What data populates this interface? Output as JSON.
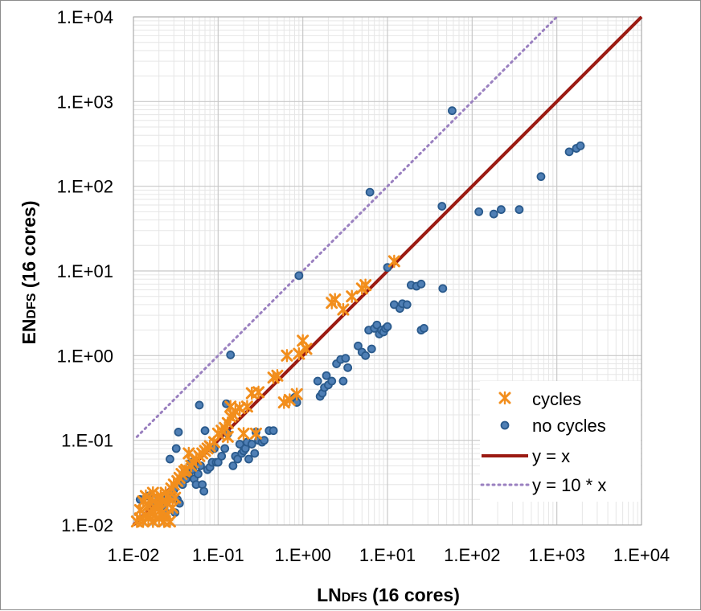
{
  "chart_data": {
    "type": "scatter",
    "xscale": "log",
    "yscale": "log",
    "xlim": [
      0.01,
      10000
    ],
    "ylim": [
      0.01,
      10000
    ],
    "xlabel_main": "LN",
    "xlabel_sub": "DFS",
    "xlabel_rest": " (16 cores)",
    "ylabel_main": "EN",
    "ylabel_sub": "DFS",
    "ylabel_rest": " (16 cores)",
    "tick_values": [
      0.01,
      0.1,
      1,
      10,
      100,
      1000,
      10000
    ],
    "x_tick_labels": [
      "1.E-02",
      "1.E-01",
      "1.E+00",
      "1.E+01",
      "1.E+02",
      "1.E+03",
      "1.E+04"
    ],
    "y_tick_labels": [
      "1.E-02",
      "1.E-01",
      "1.E+00",
      "1.E+01",
      "1.E+02",
      "1.E+03",
      "1.E+04"
    ],
    "grid": true,
    "legend_position": "bottom-right",
    "colors": {
      "cycles": "#f28e1c",
      "no_cycles_fill": "#4f7fb5",
      "no_cycles_edge": "#2a5a8c",
      "identity_line": "#9b1a12",
      "ten_x_line": "#9a80c0",
      "grid_major": "#c8c8c8",
      "grid_minor": "#e6e6e6"
    },
    "series": [
      {
        "name": "cycles",
        "marker": "star",
        "points": [
          [
            0.011,
            0.011
          ],
          [
            0.012,
            0.012
          ],
          [
            0.012,
            0.015
          ],
          [
            0.013,
            0.011
          ],
          [
            0.013,
            0.019
          ],
          [
            0.014,
            0.013
          ],
          [
            0.014,
            0.022
          ],
          [
            0.015,
            0.012
          ],
          [
            0.015,
            0.017
          ],
          [
            0.016,
            0.014
          ],
          [
            0.016,
            0.02
          ],
          [
            0.017,
            0.011
          ],
          [
            0.017,
            0.024
          ],
          [
            0.018,
            0.016
          ],
          [
            0.018,
            0.013
          ],
          [
            0.019,
            0.021
          ],
          [
            0.019,
            0.018
          ],
          [
            0.02,
            0.012
          ],
          [
            0.02,
            0.016
          ],
          [
            0.021,
            0.022
          ],
          [
            0.022,
            0.014
          ],
          [
            0.022,
            0.019
          ],
          [
            0.023,
            0.011
          ],
          [
            0.024,
            0.024
          ],
          [
            0.025,
            0.013
          ],
          [
            0.025,
            0.018
          ],
          [
            0.026,
            0.021
          ],
          [
            0.027,
            0.011
          ],
          [
            0.028,
            0.027
          ],
          [
            0.029,
            0.016
          ],
          [
            0.03,
            0.03
          ],
          [
            0.031,
            0.021
          ],
          [
            0.033,
            0.033
          ],
          [
            0.035,
            0.036
          ],
          [
            0.037,
            0.04
          ],
          [
            0.04,
            0.043
          ],
          [
            0.042,
            0.045
          ],
          [
            0.045,
            0.07
          ],
          [
            0.048,
            0.05
          ],
          [
            0.05,
            0.055
          ],
          [
            0.055,
            0.06
          ],
          [
            0.06,
            0.065
          ],
          [
            0.065,
            0.07
          ],
          [
            0.07,
            0.075
          ],
          [
            0.075,
            0.08
          ],
          [
            0.08,
            0.085
          ],
          [
            0.09,
            0.095
          ],
          [
            0.1,
            0.12
          ],
          [
            0.11,
            0.13
          ],
          [
            0.12,
            0.14
          ],
          [
            0.13,
            0.16
          ],
          [
            0.14,
            0.19
          ],
          [
            0.15,
            0.2
          ],
          [
            0.16,
            0.22
          ],
          [
            0.14,
            0.25
          ],
          [
            0.13,
            0.11
          ],
          [
            0.18,
            0.24
          ],
          [
            0.2,
            0.12
          ],
          [
            0.22,
            0.25
          ],
          [
            0.25,
            0.36
          ],
          [
            0.3,
            0.37
          ],
          [
            0.28,
            0.12
          ],
          [
            0.45,
            0.55
          ],
          [
            0.5,
            0.58
          ],
          [
            0.6,
            0.28
          ],
          [
            0.65,
            1.0
          ],
          [
            0.7,
            0.3
          ],
          [
            0.85,
            0.35
          ],
          [
            0.9,
            1.05
          ],
          [
            1.0,
            1.5
          ],
          [
            1.1,
            1.2
          ],
          [
            2.2,
            4.2
          ],
          [
            2.4,
            4.6
          ],
          [
            3.0,
            3.5
          ],
          [
            3.8,
            5.0
          ],
          [
            5.0,
            6.2
          ],
          [
            5.5,
            6.8
          ],
          [
            12,
            13
          ]
        ]
      },
      {
        "name": "no cycles",
        "marker": "circle",
        "points": [
          [
            0.012,
            0.02
          ],
          [
            0.015,
            0.022
          ],
          [
            0.018,
            0.018
          ],
          [
            0.02,
            0.021
          ],
          [
            0.022,
            0.02
          ],
          [
            0.023,
            0.016
          ],
          [
            0.024,
            0.014
          ],
          [
            0.025,
            0.019
          ],
          [
            0.027,
            0.06
          ],
          [
            0.028,
            0.022
          ],
          [
            0.03,
            0.026
          ],
          [
            0.031,
            0.014
          ],
          [
            0.032,
            0.08
          ],
          [
            0.033,
            0.02
          ],
          [
            0.034,
            0.125
          ],
          [
            0.035,
            0.018
          ],
          [
            0.038,
            0.03
          ],
          [
            0.04,
            0.04
          ],
          [
            0.042,
            0.035
          ],
          [
            0.045,
            0.04
          ],
          [
            0.048,
            0.055
          ],
          [
            0.05,
            0.045
          ],
          [
            0.052,
            0.035
          ],
          [
            0.055,
            0.03
          ],
          [
            0.058,
            0.04
          ],
          [
            0.06,
            0.26
          ],
          [
            0.062,
            0.05
          ],
          [
            0.065,
            0.03
          ],
          [
            0.068,
            0.025
          ],
          [
            0.07,
            0.13
          ],
          [
            0.075,
            0.045
          ],
          [
            0.08,
            0.048
          ],
          [
            0.085,
            0.055
          ],
          [
            0.09,
            0.08
          ],
          [
            0.095,
            0.055
          ],
          [
            0.1,
            0.055
          ],
          [
            0.11,
            0.065
          ],
          [
            0.12,
            0.08
          ],
          [
            0.125,
            0.27
          ],
          [
            0.13,
            0.12
          ],
          [
            0.14,
            1.02
          ],
          [
            0.15,
            0.05
          ],
          [
            0.16,
            0.065
          ],
          [
            0.17,
            0.06
          ],
          [
            0.18,
            0.09
          ],
          [
            0.19,
            0.07
          ],
          [
            0.2,
            0.075
          ],
          [
            0.21,
            0.08
          ],
          [
            0.22,
            0.095
          ],
          [
            0.23,
            0.06
          ],
          [
            0.25,
            0.09
          ],
          [
            0.27,
            0.07
          ],
          [
            0.28,
            0.125
          ],
          [
            0.3,
            0.1
          ],
          [
            0.33,
            0.095
          ],
          [
            0.35,
            0.1
          ],
          [
            0.4,
            0.13
          ],
          [
            0.45,
            0.13
          ],
          [
            0.8,
            0.32
          ],
          [
            0.85,
            0.28
          ],
          [
            0.9,
            8.8
          ],
          [
            1.5,
            0.5
          ],
          [
            1.6,
            0.33
          ],
          [
            1.7,
            0.36
          ],
          [
            1.8,
            0.42
          ],
          [
            1.9,
            0.58
          ],
          [
            2.0,
            0.45
          ],
          [
            2.2,
            0.5
          ],
          [
            2.5,
            0.8
          ],
          [
            2.8,
            0.9
          ],
          [
            3.0,
            0.5
          ],
          [
            3.2,
            0.93
          ],
          [
            3.4,
            0.72
          ],
          [
            4.5,
            1.3
          ],
          [
            5.0,
            1.1
          ],
          [
            5.5,
            1.0
          ],
          [
            6.0,
            2.0
          ],
          [
            6.2,
            85
          ],
          [
            6.5,
            1.2
          ],
          [
            7.0,
            2.1
          ],
          [
            7.5,
            2.3
          ],
          [
            8.0,
            1.8
          ],
          [
            8.5,
            2.0
          ],
          [
            9.0,
            1.9
          ],
          [
            9.5,
            2.1
          ],
          [
            10,
            2.2
          ],
          [
            10,
            11
          ],
          [
            12,
            4.0
          ],
          [
            14,
            3.6
          ],
          [
            15,
            4.1
          ],
          [
            17,
            4.0
          ],
          [
            19,
            6.8
          ],
          [
            22,
            6.6
          ],
          [
            25,
            7.0
          ],
          [
            25,
            2.0
          ],
          [
            27,
            2.1
          ],
          [
            44,
            58
          ],
          [
            45,
            6.2
          ],
          [
            58,
            780
          ],
          [
            120,
            50
          ],
          [
            180,
            47
          ],
          [
            220,
            53
          ],
          [
            360,
            53
          ],
          [
            650,
            130
          ],
          [
            1400,
            255
          ],
          [
            1700,
            280
          ],
          [
            1900,
            300
          ]
        ]
      },
      {
        "name": "y = x",
        "type": "line",
        "style": "solid",
        "points": [
          [
            0.01,
            0.01
          ],
          [
            10000,
            10000
          ]
        ]
      },
      {
        "name": "y = 10 * x",
        "type": "line",
        "style": "dotted",
        "points": [
          [
            0.011,
            0.11
          ],
          [
            1000,
            10000
          ]
        ]
      }
    ]
  }
}
